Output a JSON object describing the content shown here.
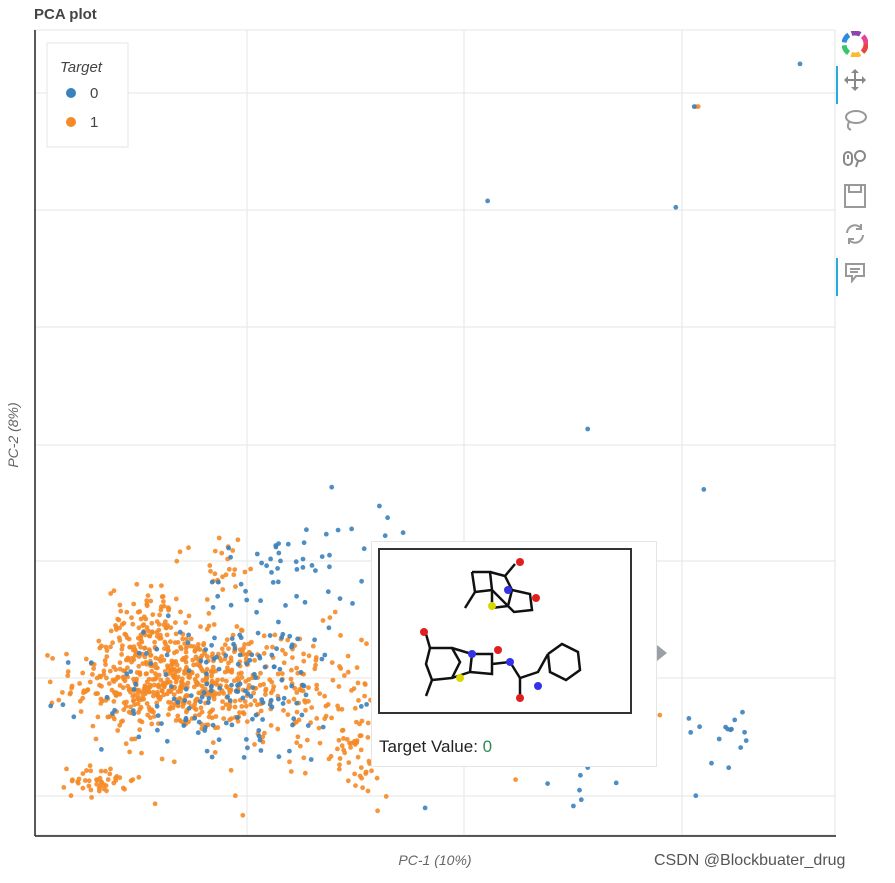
{
  "chart_data": {
    "type": "scatter",
    "title": "PCA plot",
    "xlabel": "PC-1 (10%)",
    "ylabel": "PC-2 (8%)",
    "legend": {
      "title": "Target",
      "placement": "top-left",
      "entries": [
        "0",
        "1"
      ]
    },
    "grid": true,
    "xlim": [
      0,
      100
    ],
    "ylim": [
      0,
      100
    ],
    "series": [
      {
        "name": "0",
        "color": "#3b82bd",
        "clusters": [
          {
            "cx": 23,
            "cy": 17,
            "sx": 8,
            "sy": 4,
            "n": 130
          },
          {
            "cx": 30,
            "cy": 28,
            "sx": 5,
            "sy": 5,
            "n": 60
          },
          {
            "cx": 40,
            "cy": 37,
            "sx": 6,
            "sy": 4,
            "n": 25
          },
          {
            "cx": 65,
            "cy": 13,
            "sx": 8,
            "sy": 4,
            "n": 35
          },
          {
            "cx": 87,
            "cy": 13,
            "sx": 3,
            "sy": 2,
            "n": 15
          }
        ],
        "points": [
          [
            95.5,
            95.8
          ],
          [
            82.3,
            90.5
          ],
          [
            56.5,
            78.8
          ],
          [
            80,
            78
          ],
          [
            69,
            50.5
          ],
          [
            83.5,
            43
          ],
          [
            82.5,
            5
          ],
          [
            64,
            6.5
          ]
        ]
      },
      {
        "name": "1",
        "color": "#f58a26",
        "clusters": [
          {
            "cx": 17,
            "cy": 19,
            "sx": 6,
            "sy": 3,
            "n": 500
          },
          {
            "cx": 14,
            "cy": 26,
            "sx": 2.5,
            "sy": 2.5,
            "n": 110
          },
          {
            "cx": 30,
            "cy": 18,
            "sx": 8,
            "sy": 4,
            "n": 200
          },
          {
            "cx": 40,
            "cy": 11,
            "sx": 3,
            "sy": 3,
            "n": 70
          },
          {
            "cx": 8.5,
            "cy": 7,
            "sx": 2,
            "sy": 1,
            "n": 45
          },
          {
            "cx": 23,
            "cy": 34,
            "sx": 3,
            "sy": 2,
            "n": 25
          }
        ],
        "points": [
          [
            82.5,
            90.5
          ],
          [
            82.8,
            90.5
          ],
          [
            4.5,
            5
          ],
          [
            15,
            4
          ],
          [
            25,
            5
          ],
          [
            32,
            8
          ],
          [
            60,
            7
          ],
          [
            78,
            15
          ]
        ]
      }
    ]
  },
  "tooltip": {
    "label": "Target Value:",
    "value": "0"
  },
  "toolbar": {
    "tools": [
      "bokeh-logo-icon",
      "pan-icon",
      "lasso-icon",
      "wheel-zoom-icon",
      "save-icon",
      "reset-icon",
      "hover-icon"
    ]
  },
  "watermark": "CSDN @Blockbuater_drug"
}
